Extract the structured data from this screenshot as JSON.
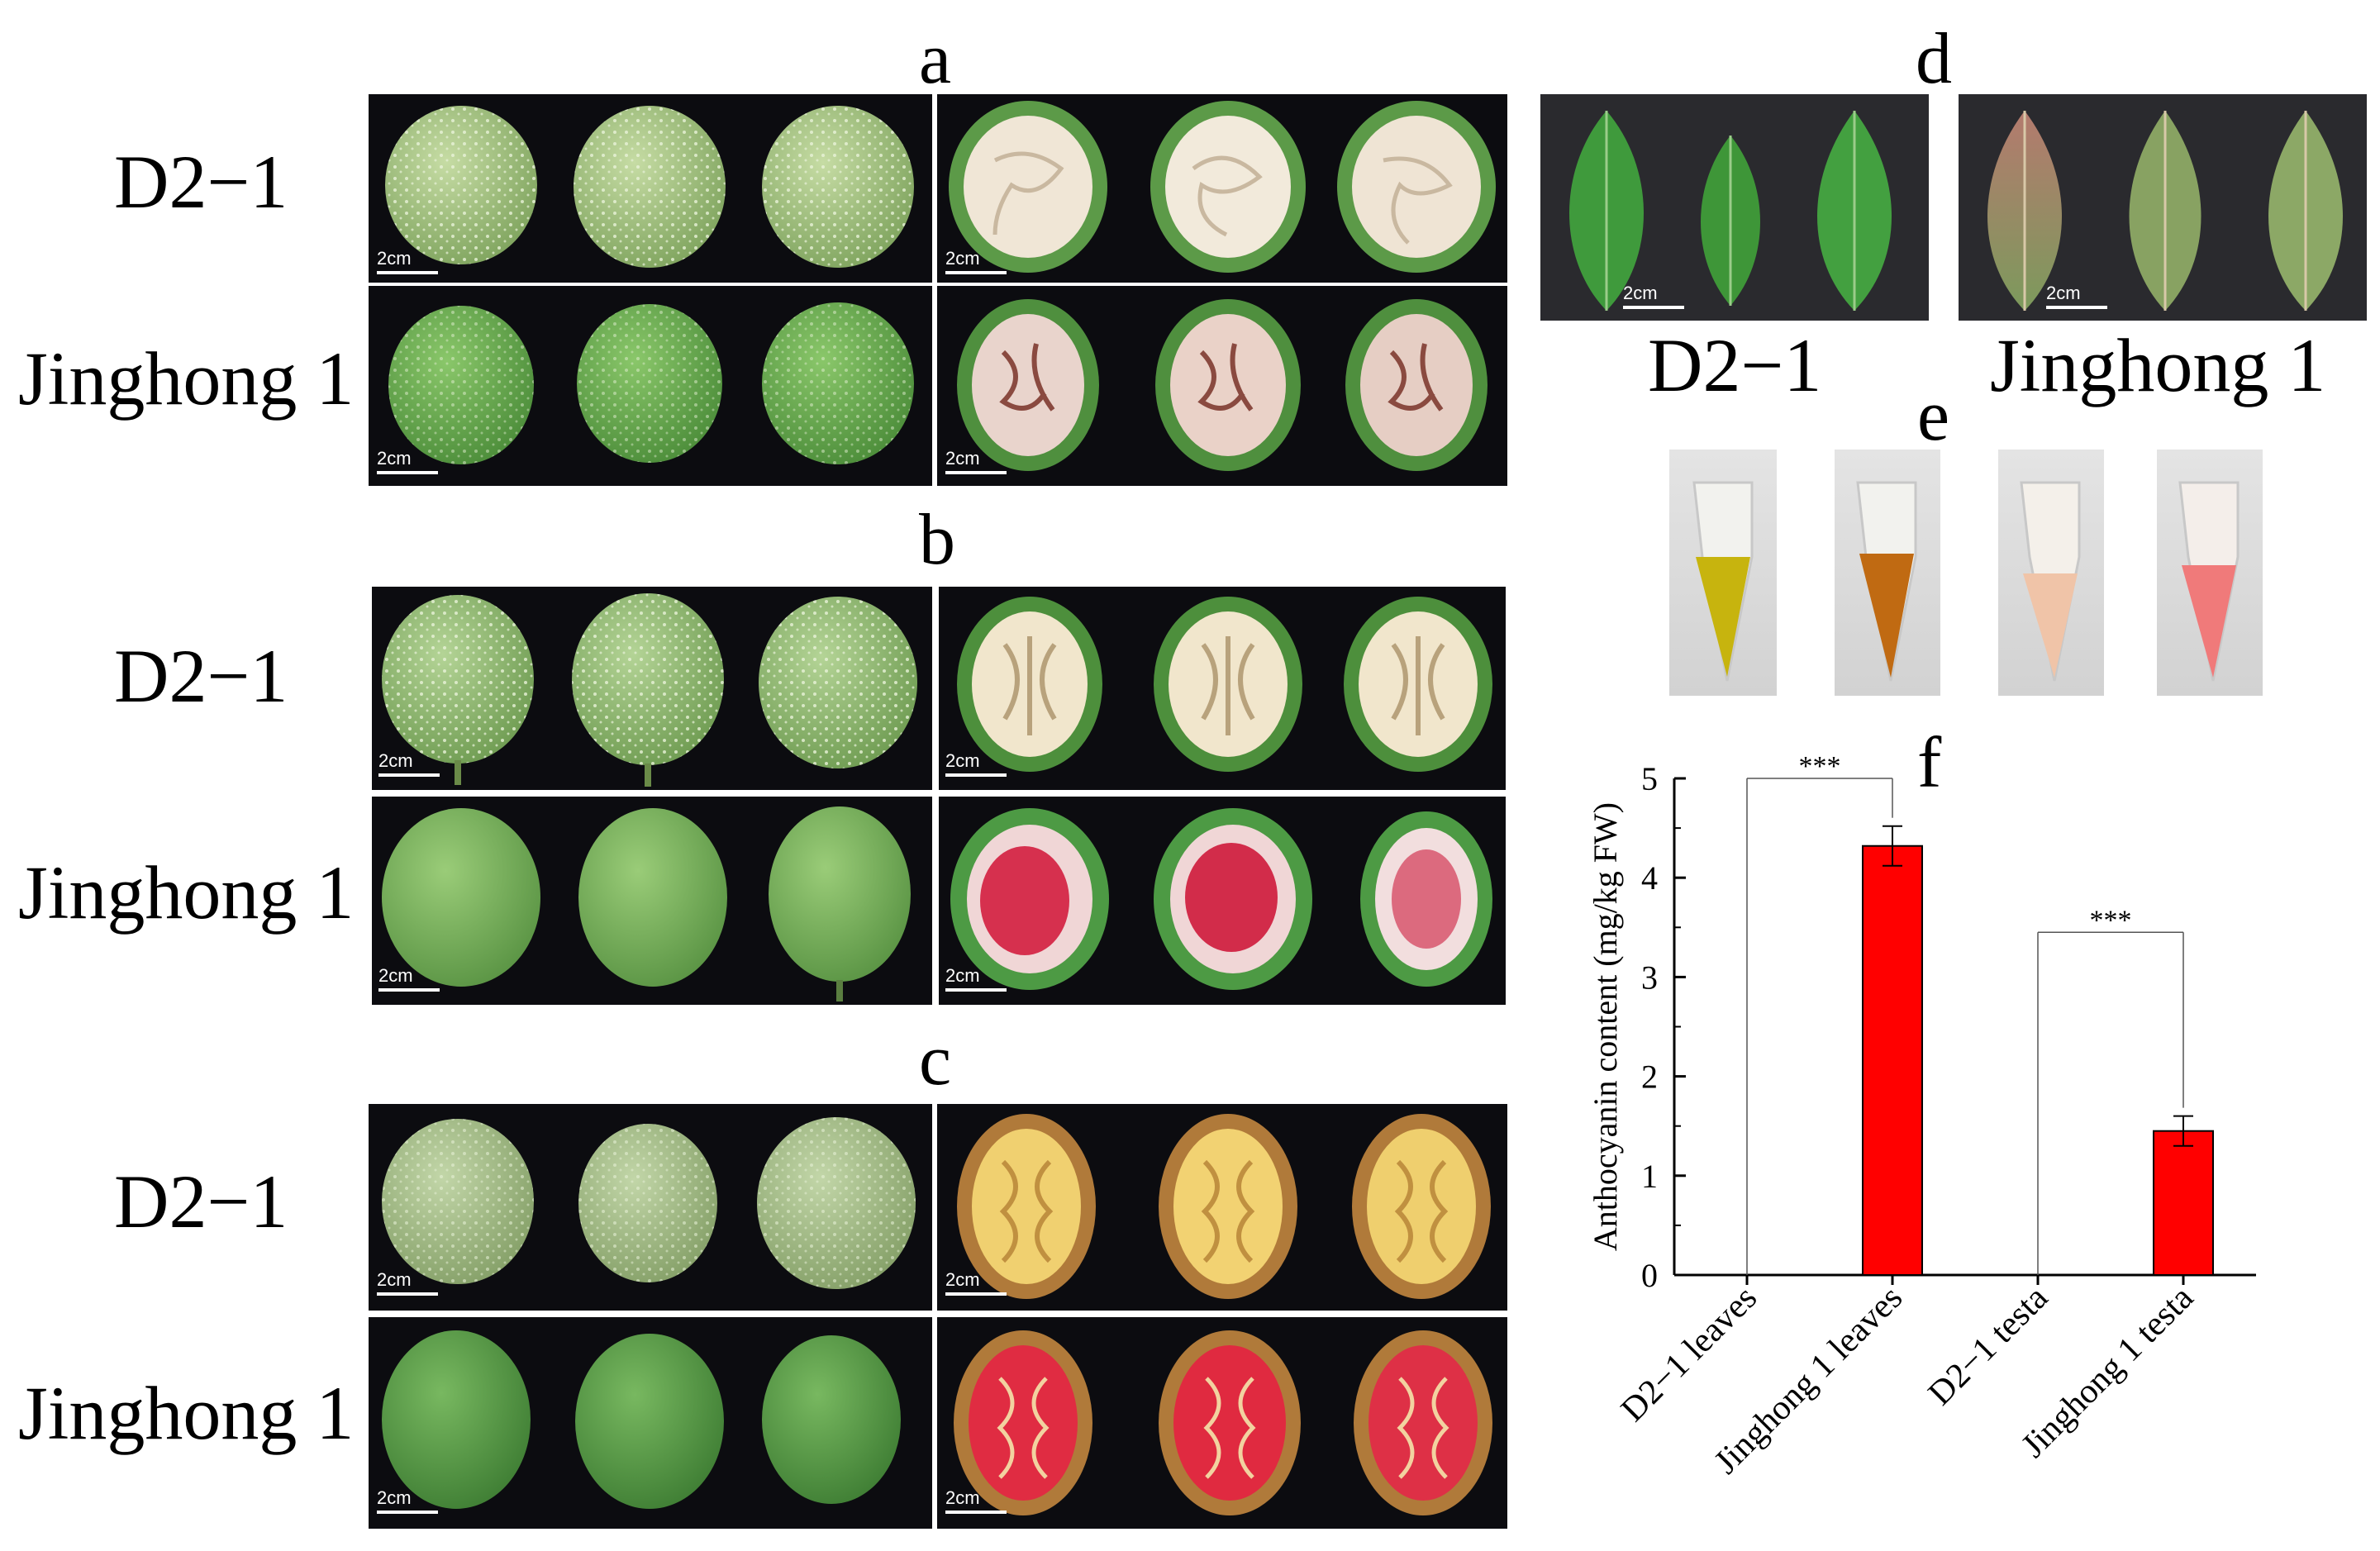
{
  "panels": {
    "a": {
      "letter": "a",
      "row1": "D2−1",
      "row2": "Jinghong 1"
    },
    "b": {
      "letter": "b",
      "row1": "D2−1",
      "row2": "Jinghong 1"
    },
    "c": {
      "letter": "c",
      "row1": "D2−1",
      "row2": "Jinghong 1"
    },
    "d": {
      "letter": "d",
      "left_label": "D2−1",
      "right_label": "Jinghong 1"
    },
    "e": {
      "letter": "e"
    },
    "f": {
      "letter": "f"
    }
  },
  "scale_label": "2cm",
  "colors": {
    "photo_bg": "#0c0c10",
    "fruit_green": "#8fbf6a",
    "kernel_cream": "#f2ead8",
    "kernel_red": "#d8304a",
    "bar_fill": "#ff0000"
  },
  "chart_data": {
    "type": "bar",
    "categories": [
      "D2−1 leaves",
      "Jinghong 1 leaves",
      "D2−1 testa",
      "Jinghong 1 testa"
    ],
    "values": [
      0,
      4.32,
      0,
      1.45
    ],
    "errors": [
      0,
      0.2,
      0,
      0.15
    ],
    "ylabel": "Anthocyanin content (mg/kg FW)",
    "ylim": [
      0,
      5
    ],
    "yticks": [
      "0",
      "1",
      "2",
      "3",
      "4",
      "5"
    ],
    "significance": [
      {
        "from": 0,
        "to": 1,
        "label": "***"
      },
      {
        "from": 2,
        "to": 3,
        "label": "***"
      }
    ],
    "bar_color": "#ff0000"
  }
}
